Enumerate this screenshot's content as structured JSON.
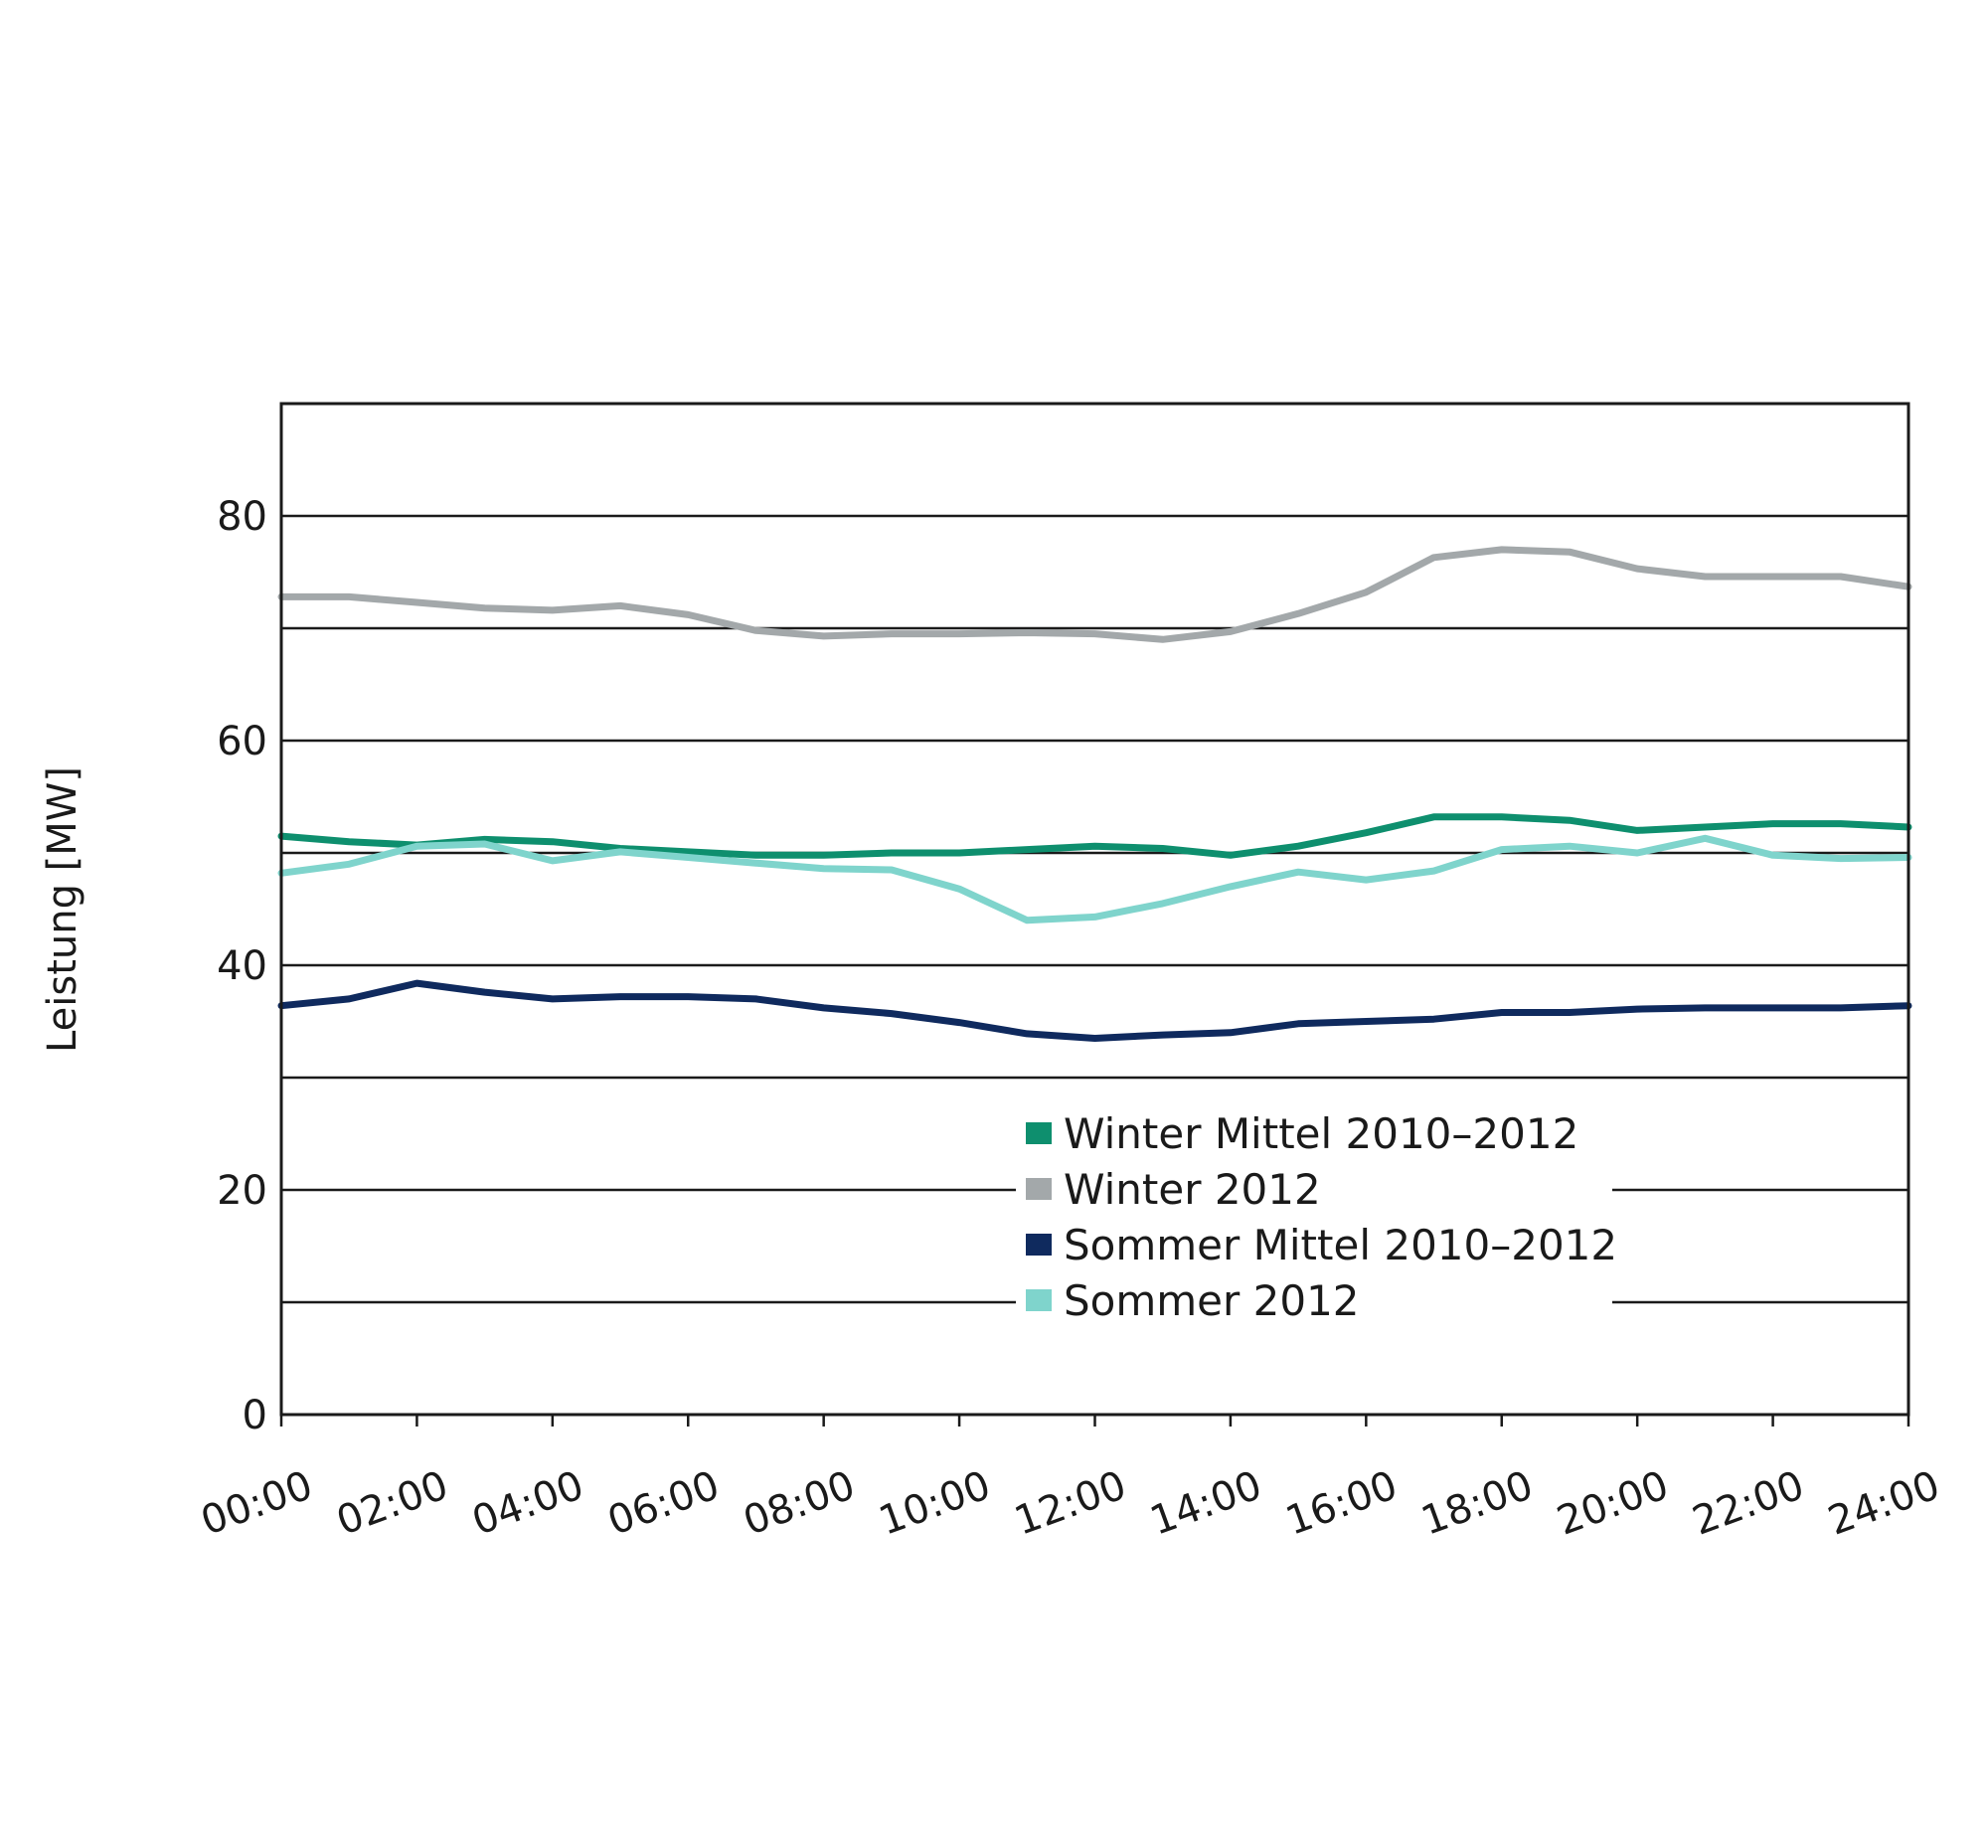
{
  "chart_data": {
    "type": "line",
    "title": "",
    "xlabel": "",
    "ylabel": "Leistung [MW]",
    "x_ticks": [
      "00:00",
      "02:00",
      "04:00",
      "06:00",
      "08:00",
      "10:00",
      "12:00",
      "14:00",
      "16:00",
      "18:00",
      "20:00",
      "22:00",
      "24:00"
    ],
    "y_ticks": [
      0,
      20,
      40,
      60,
      80
    ],
    "ylim": [
      0,
      90
    ],
    "xlim": [
      0,
      24
    ],
    "grid": true,
    "legend_position": "bottom-center",
    "x": [
      0,
      1,
      2,
      3,
      4,
      5,
      6,
      7,
      8,
      9,
      10,
      11,
      12,
      13,
      14,
      15,
      16,
      17,
      18,
      19,
      20,
      21,
      22,
      23,
      24
    ],
    "series": [
      {
        "name": "Winter Mittel 2010–2012",
        "color": "#0e8f6e",
        "values": [
          51.5,
          51.0,
          50.7,
          51.2,
          51.0,
          50.4,
          50.1,
          49.8,
          49.8,
          50.0,
          50.0,
          50.3,
          50.6,
          50.4,
          49.8,
          50.6,
          51.8,
          53.2,
          53.2,
          52.9,
          52.0,
          52.3,
          52.6,
          52.6,
          52.3
        ]
      },
      {
        "name": "Winter 2012",
        "color": "#a3a8aa",
        "values": [
          72.8,
          72.8,
          72.3,
          71.8,
          71.6,
          72.0,
          71.2,
          69.8,
          69.3,
          69.5,
          69.5,
          69.6,
          69.5,
          69.0,
          69.7,
          71.3,
          73.2,
          76.3,
          77.0,
          76.8,
          75.3,
          74.6,
          74.6,
          74.6,
          73.7
        ]
      },
      {
        "name": "Sommer Mittel 2010–2012",
        "color": "#0f2a5e",
        "values": [
          36.4,
          37.0,
          38.4,
          37.6,
          37.0,
          37.2,
          37.2,
          37.0,
          36.2,
          35.7,
          34.9,
          33.9,
          33.5,
          33.8,
          34.0,
          34.8,
          35.0,
          35.2,
          35.8,
          35.8,
          36.1,
          36.2,
          36.2,
          36.2,
          36.4
        ]
      },
      {
        "name": "Sommer 2012",
        "color": "#7fd4cc",
        "values": [
          48.2,
          49.0,
          50.6,
          50.8,
          49.3,
          50.1,
          49.6,
          49.1,
          48.6,
          48.5,
          46.8,
          44.0,
          44.3,
          45.5,
          47.0,
          48.3,
          47.6,
          48.4,
          50.3,
          50.6,
          50.0,
          51.3,
          49.8,
          49.5,
          49.6
        ]
      }
    ]
  }
}
